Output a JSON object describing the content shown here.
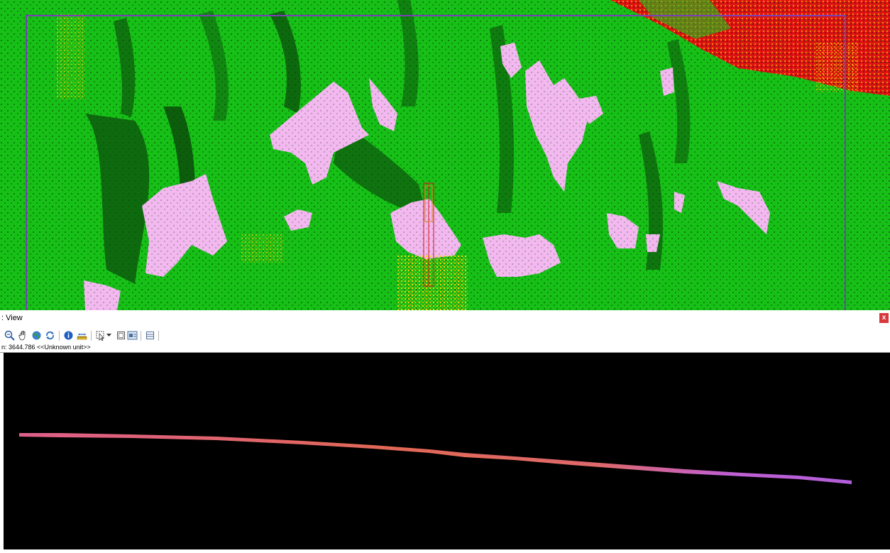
{
  "profile_panel": {
    "title": ": View",
    "close_label": "x",
    "status_text": "n: 3644.786 <<Unknown unit>>"
  },
  "toolbar": {
    "buttons": [
      {
        "name": "zoom-out-icon"
      },
      {
        "name": "pan-hand-icon"
      },
      {
        "name": "globe-icon"
      },
      {
        "name": "refresh-icon"
      },
      {
        "name": "info-icon"
      },
      {
        "name": "measure-icon"
      },
      {
        "name": "select-points-icon"
      },
      {
        "name": "dropdown-arrow-icon"
      },
      {
        "name": "frame-icon"
      },
      {
        "name": "view-icon"
      },
      {
        "name": "layout-icon"
      }
    ]
  },
  "colors": {
    "ground_green": "#19c419",
    "dark_vegetation": "#0a4d0a",
    "pink_area": "#f2b6ee",
    "red_area": "#e01010",
    "yellow_points": "#f0d000",
    "boundary_purple": "#7a3fb8",
    "profile_line": "#e06a6a",
    "profile_purple": "#b060e0"
  }
}
